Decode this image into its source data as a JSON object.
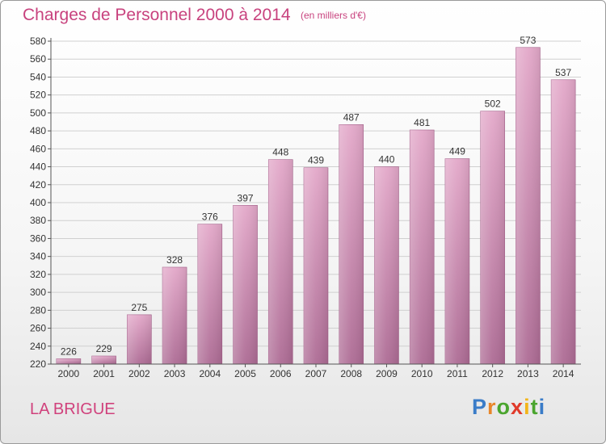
{
  "page": {
    "title": "Charges de Personnel 2000 à 2014",
    "subtitle": "(en milliers d'€)",
    "commune": "LA BRIGUE",
    "logo": {
      "letters": [
        "P",
        "r",
        "o",
        "x",
        "i",
        "t",
        "i"
      ],
      "colors": [
        "#3a7cc8",
        "#e8862a",
        "#4aa52e",
        "#e03a2a",
        "#f2b51a",
        "#4aa52e",
        "#3a7cc8"
      ]
    }
  },
  "chart_data": {
    "type": "bar",
    "title": "Charges de Personnel 2000 à 2014",
    "subtitle": "(en milliers d'€)",
    "categories": [
      "2000",
      "2001",
      "2002",
      "2003",
      "2004",
      "2005",
      "2006",
      "2007",
      "2008",
      "2009",
      "2010",
      "2011",
      "2012",
      "2013",
      "2014"
    ],
    "values": [
      226,
      229,
      275,
      328,
      376,
      397,
      448,
      439,
      487,
      440,
      481,
      449,
      502,
      573,
      537
    ],
    "ylim": [
      220,
      580
    ],
    "yticks": [
      220,
      240,
      260,
      280,
      300,
      320,
      340,
      360,
      380,
      400,
      420,
      440,
      460,
      480,
      500,
      520,
      540,
      560,
      580
    ],
    "grid": true,
    "bar_color_top": "#e3a8c9",
    "bar_color_bottom": "#ad6b94"
  }
}
